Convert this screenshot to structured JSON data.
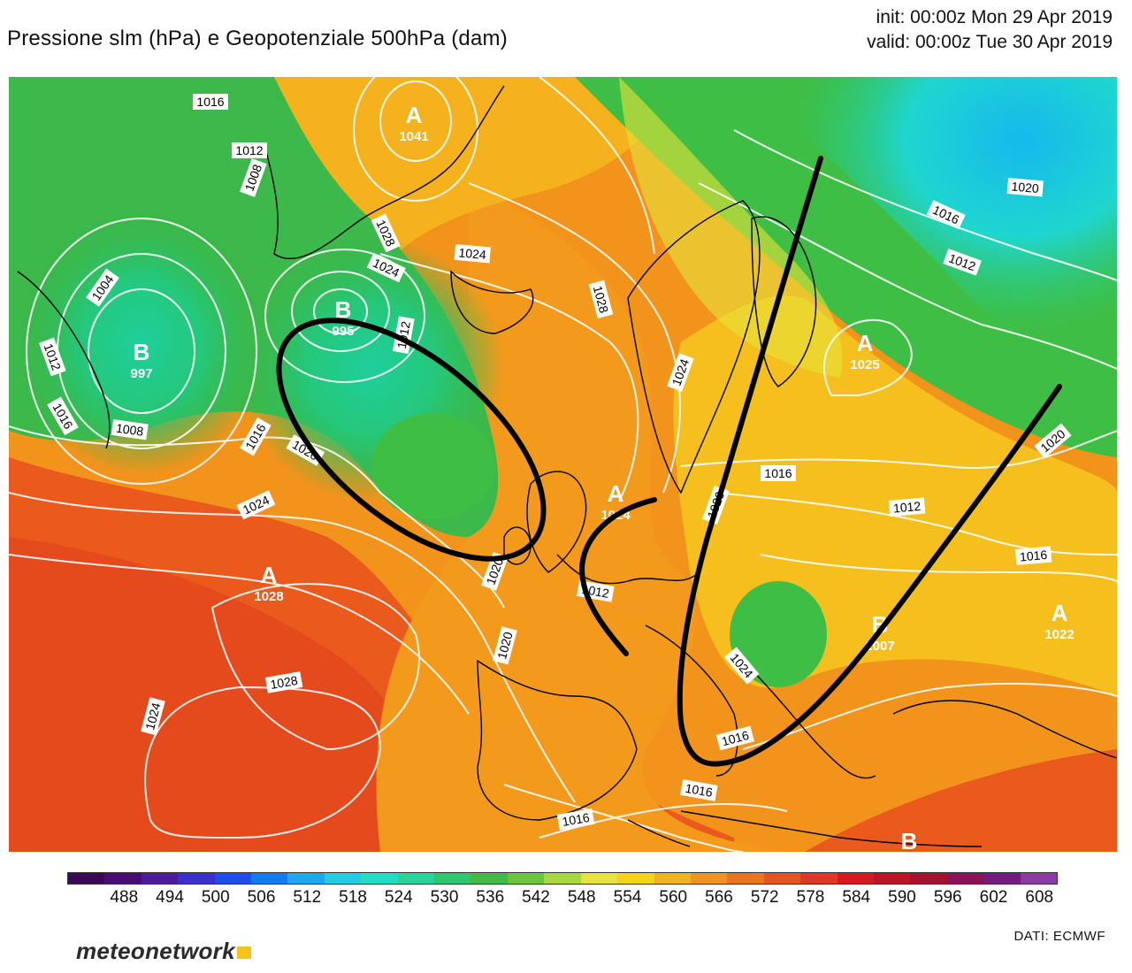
{
  "header": {
    "title": "Pressione slm (hPa) e Geopotenziale 500hPa (dam)",
    "init": "init: 00:00z Mon 29 Apr 2019",
    "valid": "valid: 00:00z Tue 30 Apr 2019"
  },
  "isobar_labels": [
    "1016",
    "1012",
    "1008",
    "1004",
    "1012",
    "1016",
    "1008",
    "1016",
    "1020",
    "1024",
    "1028",
    "1024",
    "1024",
    "1012",
    "1020",
    "1024",
    "1028",
    "1028",
    "1024",
    "1020",
    "1016",
    "1012",
    "1020",
    "1016",
    "1012",
    "1016",
    "1020",
    "1016",
    "1012",
    "1020",
    "1024",
    "1016",
    "1016"
  ],
  "pressure_centers": [
    {
      "type": "B",
      "value": "997"
    },
    {
      "type": "B",
      "value": "995"
    },
    {
      "type": "A",
      "value": "1041"
    },
    {
      "type": "A",
      "value": "1028"
    },
    {
      "type": "A",
      "value": "1025"
    },
    {
      "type": "A",
      "value": "1022"
    },
    {
      "type": "B",
      "value": "1007"
    },
    {
      "type": "A",
      "value": "1024"
    },
    {
      "type": "B",
      "value": ""
    }
  ],
  "colorbar": {
    "ticks": [
      "488",
      "494",
      "500",
      "506",
      "512",
      "518",
      "524",
      "530",
      "536",
      "542",
      "548",
      "554",
      "560",
      "566",
      "572",
      "578",
      "584",
      "590",
      "596",
      "602",
      "608"
    ],
    "colors": [
      "#3a0a58",
      "#4a0c7a",
      "#4e1aa0",
      "#3a2fd0",
      "#1a4ef0",
      "#0f7cf5",
      "#1aa8f2",
      "#1fcde8",
      "#22dcc4",
      "#25d69a",
      "#2bc870",
      "#3fbe45",
      "#6cc63a",
      "#a8d83a",
      "#e6e33a",
      "#f5d21e",
      "#f5b21c",
      "#f2931c",
      "#ee741c",
      "#e9541c",
      "#e23620",
      "#d41c1f",
      "#bf1426",
      "#a81030",
      "#8e1058",
      "#7a1a80",
      "#8b3aa6"
    ]
  },
  "logo": "meteonetwork",
  "source": "DATI:  ECMWF"
}
